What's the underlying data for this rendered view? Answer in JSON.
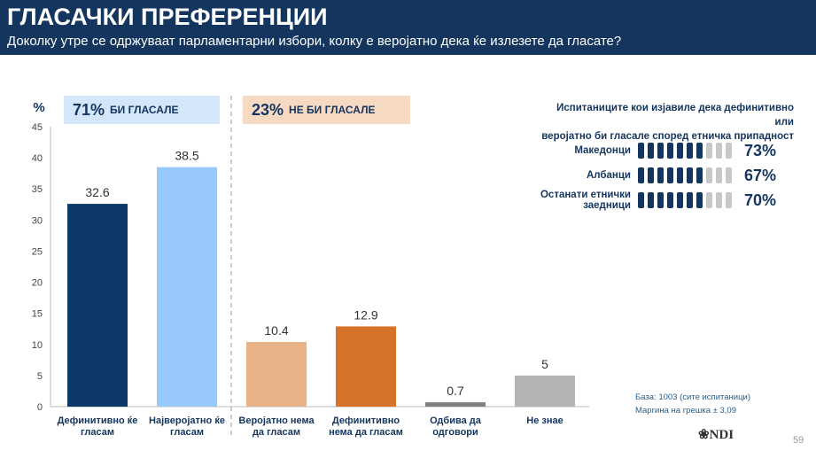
{
  "header": {
    "title": "ГЛАСАЧКИ ПРЕФЕРЕНЦИИ",
    "subtitle": "Доколку утре се одржуваат парламентарни избори, колку е веројатно дека ќе излезете да гласате?"
  },
  "groups": [
    {
      "percent": "71%",
      "label": "БИ ГЛАСАЛЕ",
      "color": "#d4e6f9"
    },
    {
      "percent": "23%",
      "label": "НЕ БИ ГЛАСАЛЕ",
      "color": "#f6d9c3"
    }
  ],
  "chart_data": {
    "type": "bar",
    "ylabel": "%",
    "ylim": [
      0,
      45
    ],
    "yticks": [
      0,
      5,
      10,
      15,
      20,
      25,
      30,
      35,
      40,
      45
    ],
    "categories": [
      [
        "Дефинитивно ќе",
        "гласам"
      ],
      [
        "Најверојатно ќе",
        "гласам"
      ],
      [
        "Веројатно нема",
        "да гласам"
      ],
      [
        "Дефинитивно",
        "нема да гласам"
      ],
      [
        "Одбива да",
        "одговори"
      ],
      [
        "Не знае"
      ]
    ],
    "values": [
      32.6,
      38.5,
      10.4,
      12.9,
      0.7,
      5
    ],
    "labels": [
      "32.6",
      "38.5",
      "10.4",
      "12.9",
      "0.7",
      "5"
    ],
    "colors": [
      "#0c3868",
      "#99c9fb",
      "#e9b38a",
      "#d7722a",
      "#7f7f7f",
      "#b4b4b4"
    ]
  },
  "ethnic": {
    "title_line1": "Испитаниците кои изјавиле дека дефинитивно или",
    "title_line2": "веројатно би гласале според етничка припадност",
    "rows": [
      {
        "label": "Македонци",
        "value": "73%",
        "filled": 7
      },
      {
        "label": "Албанци",
        "value": "67%",
        "filled": 7
      },
      {
        "label": "Останати етнички заедници",
        "value": "70%",
        "filled": 7
      }
    ]
  },
  "note": {
    "line1": "База: 1003 (сите испитаници)",
    "line2": "Маргина на грешка ± 3,09"
  },
  "logo": "NDI",
  "page": "59"
}
